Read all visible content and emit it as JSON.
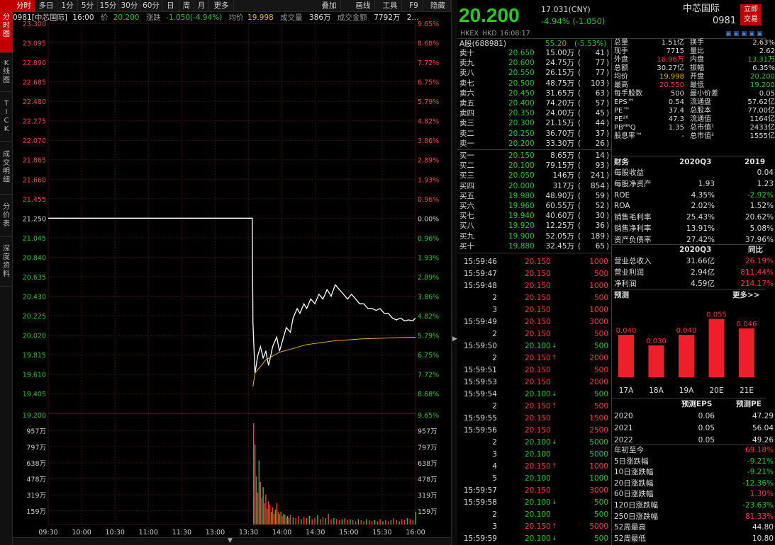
{
  "vtabs": [
    "分时图",
    "K线图",
    "TICK",
    "成交明细",
    "分价表",
    "深度资料"
  ],
  "toolbar": [
    "分时",
    "多日",
    "1分",
    "5分",
    "15分",
    "30分",
    "60分",
    "日",
    "周",
    "月",
    "更多",
    "叠加",
    "画线",
    "工具",
    "F9",
    "隐藏"
  ],
  "info": {
    "code": "0981[中芯国际]",
    "time": "16:00",
    "price_label": "价",
    "price": "20.200",
    "change_label": "涨跌",
    "change": "-1.050(-4.94%)",
    "avg_label": "均价",
    "avg": "19.998",
    "vol_label": "成交量",
    "vol": "386万",
    "amount_label": "成交金额",
    "amount": "7792万",
    "more": "2..."
  },
  "chart_data": {
    "type": "line",
    "prev_close": 21.25,
    "price_axis_left": [
      "23.300",
      "23.095",
      "22.890",
      "22.685",
      "22.480",
      "22.275",
      "22.070",
      "21.865",
      "21.660",
      "21.455",
      "21.250",
      "21.045",
      "20.840",
      "20.635",
      "20.430",
      "20.225",
      "20.020",
      "19.815",
      "19.610",
      "19.405"
    ],
    "price_axis_right": [
      "9.65%",
      "8.68%",
      "7.72%",
      "6.75%",
      "5.79%",
      "4.82%",
      "3.86%",
      "2.89%",
      "1.93%",
      "0.96%",
      "0.00%",
      "0.96%",
      "1.93%",
      "2.89%",
      "3.86%",
      "4.82%",
      "5.79%",
      "6.75%",
      "7.72%",
      "8.68%"
    ],
    "vol_axis_left": [
      "19.200",
      "957万",
      "797万",
      "638万",
      "478万",
      "319万",
      "159万"
    ],
    "vol_axis_right": [
      "9.65%",
      "957万",
      "797万",
      "638万",
      "478万",
      "319万",
      "159万"
    ],
    "x_labels": [
      "09:30",
      "10:00",
      "10:30",
      "11:00",
      "11:30",
      "13:00",
      "13:30",
      "14:00",
      "14:30",
      "15:00",
      "15:30",
      "16:00"
    ],
    "price_series": [
      [
        0,
        21.25
      ],
      [
        150,
        21.25
      ],
      [
        150.5,
        20.15
      ],
      [
        152,
        19.62
      ],
      [
        154,
        19.8
      ],
      [
        156,
        19.9
      ],
      [
        158,
        19.78
      ],
      [
        160,
        19.85
      ],
      [
        162,
        19.7
      ],
      [
        165,
        19.9
      ],
      [
        168,
        20.0
      ],
      [
        170,
        19.85
      ],
      [
        172,
        19.95
      ],
      [
        175,
        20.1
      ],
      [
        178,
        20.05
      ],
      [
        180,
        20.2
      ],
      [
        183,
        20.3
      ],
      [
        185,
        20.25
      ],
      [
        188,
        20.35
      ],
      [
        190,
        20.3
      ],
      [
        193,
        20.4
      ],
      [
        196,
        20.35
      ],
      [
        199,
        20.45
      ],
      [
        202,
        20.4
      ],
      [
        205,
        20.5
      ],
      [
        208,
        20.43
      ],
      [
        211,
        20.55
      ],
      [
        214,
        20.5
      ],
      [
        217,
        20.45
      ],
      [
        220,
        20.4
      ],
      [
        223,
        20.45
      ],
      [
        226,
        20.4
      ],
      [
        229,
        20.35
      ],
      [
        232,
        20.35
      ],
      [
        235,
        20.3
      ],
      [
        238,
        20.3
      ],
      [
        241,
        20.28
      ],
      [
        244,
        20.3
      ],
      [
        247,
        20.25
      ],
      [
        250,
        20.25
      ],
      [
        253,
        20.2
      ],
      [
        256,
        20.18
      ],
      [
        259,
        20.2
      ],
      [
        262,
        20.17
      ],
      [
        265,
        20.18
      ],
      [
        268,
        20.17
      ],
      [
        270,
        20.2
      ]
    ],
    "avg_series": [
      [
        150.5,
        19.48
      ],
      [
        152,
        19.62
      ],
      [
        160,
        19.76
      ],
      [
        170,
        19.84
      ],
      [
        180,
        19.88
      ],
      [
        190,
        19.92
      ],
      [
        200,
        19.94
      ],
      [
        210,
        19.96
      ],
      [
        220,
        19.97
      ],
      [
        230,
        19.98
      ],
      [
        240,
        19.985
      ],
      [
        250,
        19.99
      ],
      [
        260,
        19.995
      ],
      [
        270,
        19.998
      ]
    ],
    "volume_bars": [
      [
        151,
        0.95
      ],
      [
        152,
        0.75
      ],
      [
        153,
        0.45
      ],
      [
        154,
        0.3
      ],
      [
        155,
        0.6
      ],
      [
        156,
        0.4
      ],
      [
        157,
        0.25
      ],
      [
        158,
        0.35
      ],
      [
        159,
        0.2
      ],
      [
        160,
        0.28
      ],
      [
        161,
        0.15
      ],
      [
        162,
        0.22
      ],
      [
        163,
        0.18
      ],
      [
        164,
        0.12
      ],
      [
        165,
        0.16
      ],
      [
        166,
        0.1
      ],
      [
        167,
        0.14
      ],
      [
        168,
        0.2
      ],
      [
        169,
        0.12
      ],
      [
        170,
        0.1
      ],
      [
        171,
        0.12
      ],
      [
        172,
        0.08
      ],
      [
        173,
        0.1
      ],
      [
        174,
        0.09
      ],
      [
        175,
        0.07
      ],
      [
        176,
        0.08
      ],
      [
        177,
        0.06
      ],
      [
        178,
        0.09
      ],
      [
        180,
        0.07
      ],
      [
        182,
        0.06
      ],
      [
        184,
        0.08
      ],
      [
        186,
        0.05
      ],
      [
        188,
        0.07
      ],
      [
        190,
        0.06
      ],
      [
        192,
        0.08
      ],
      [
        194,
        0.05
      ],
      [
        196,
        0.06
      ],
      [
        198,
        0.09
      ],
      [
        200,
        0.05
      ],
      [
        202,
        0.07
      ],
      [
        204,
        0.06
      ],
      [
        206,
        0.1
      ],
      [
        208,
        0.05
      ],
      [
        210,
        0.06
      ],
      [
        212,
        0.05
      ],
      [
        214,
        0.04
      ],
      [
        216,
        0.05
      ],
      [
        218,
        0.06
      ],
      [
        220,
        0.04
      ],
      [
        222,
        0.05
      ],
      [
        224,
        0.04
      ],
      [
        226,
        0.03
      ],
      [
        228,
        0.05
      ],
      [
        230,
        0.04
      ],
      [
        232,
        0.03
      ],
      [
        234,
        0.05
      ],
      [
        236,
        0.04
      ],
      [
        238,
        0.03
      ],
      [
        240,
        0.04
      ],
      [
        242,
        0.03
      ],
      [
        244,
        0.05
      ],
      [
        246,
        0.03
      ],
      [
        248,
        0.04
      ],
      [
        250,
        0.03
      ],
      [
        252,
        0.04
      ],
      [
        254,
        0.06
      ],
      [
        256,
        0.04
      ],
      [
        258,
        0.03
      ],
      [
        260,
        0.05
      ],
      [
        262,
        0.04
      ],
      [
        264,
        0.06
      ],
      [
        266,
        0.05
      ],
      [
        268,
        0.04
      ],
      [
        270,
        0.12
      ]
    ]
  },
  "quote": {
    "price": "20.200",
    "cny": "17.031(CNY)",
    "change": "-4.94% (-1.050)",
    "exchange": "HKEX",
    "currency": "HKD",
    "time": "16:08:17",
    "name": "中芯国际",
    "code": "0981",
    "trade_btn": "立即交易"
  },
  "ashare": {
    "label": "A股(688981)",
    "price": "55.20",
    "pct": "(-5.53%)"
  },
  "asks": [
    [
      "卖十",
      "20.650",
      "15.00万",
      "41"
    ],
    [
      "卖九",
      "20.600",
      "24.75万",
      "77"
    ],
    [
      "卖八",
      "20.550",
      "26.15万",
      "77"
    ],
    [
      "卖七",
      "20.500",
      "48.75万",
      "103"
    ],
    [
      "卖六",
      "20.450",
      "31.65万",
      "63"
    ],
    [
      "卖五",
      "20.400",
      "74.20万",
      "57"
    ],
    [
      "卖四",
      "20.350",
      "24.00万",
      "45"
    ],
    [
      "卖三",
      "20.300",
      "21.15万",
      "44"
    ],
    [
      "卖二",
      "20.250",
      "36.70万",
      "37"
    ],
    [
      "卖一",
      "20.200",
      "33.30万",
      "26"
    ]
  ],
  "bids": [
    [
      "买一",
      "20.150",
      "8.65万",
      "14"
    ],
    [
      "买二",
      "20.100",
      "79.15万",
      "93"
    ],
    [
      "买三",
      "20.050",
      "146万",
      "241"
    ],
    [
      "买四",
      "20.000",
      "317万",
      "854"
    ],
    [
      "买五",
      "19.980",
      "48.90万",
      "59"
    ],
    [
      "买六",
      "19.960",
      "60.55万",
      "52"
    ],
    [
      "买七",
      "19.940",
      "40.60万",
      "30"
    ],
    [
      "买八",
      "19.920",
      "12.25万",
      "36"
    ],
    [
      "买九",
      "19.900",
      "52.05万",
      "189"
    ],
    [
      "买十",
      "19.880",
      "32.45万",
      "65"
    ]
  ],
  "ticks": [
    [
      "15:59:46",
      "20.150",
      "",
      "1000",
      "r"
    ],
    [
      "15:59:47",
      "20.150",
      "",
      "500",
      "r"
    ],
    [
      "15:59:48",
      "20.150",
      "",
      "1000",
      "r"
    ],
    [
      "2",
      "20.150",
      "",
      "500",
      "r"
    ],
    [
      "3",
      "20.150",
      "",
      "1000",
      "r"
    ],
    [
      "15:59:49",
      "20.150",
      "",
      "3000",
      "r"
    ],
    [
      "2",
      "20.150",
      "",
      "500",
      "r"
    ],
    [
      "15:59:50",
      "20.100",
      "down",
      "500",
      "g"
    ],
    [
      "2",
      "20.150",
      "up",
      "2000",
      "r"
    ],
    [
      "15:59:51",
      "20.150",
      "",
      "500",
      "r"
    ],
    [
      "15:59:53",
      "20.150",
      "",
      "2000",
      "r"
    ],
    [
      "15:59:54",
      "20.100",
      "down",
      "500",
      "g"
    ],
    [
      "2",
      "20.150",
      "up",
      "500",
      "r"
    ],
    [
      "15:59:55",
      "20.150",
      "",
      "1500",
      "r"
    ],
    [
      "15:59:56",
      "20.150",
      "",
      "2500",
      "r"
    ],
    [
      "2",
      "20.100",
      "down",
      "5000",
      "g"
    ],
    [
      "3",
      "20.100",
      "",
      "5000",
      "g"
    ],
    [
      "4",
      "20.150",
      "up",
      "1000",
      "r"
    ],
    [
      "5",
      "20.100",
      "",
      "1000",
      "g"
    ],
    [
      "15:59:57",
      "20.150",
      "",
      "3000",
      "r"
    ],
    [
      "15:59:58",
      "20.100",
      "down",
      "500",
      "g"
    ],
    [
      "2",
      "20.100",
      "",
      "500",
      "g"
    ],
    [
      "3",
      "20.150",
      "up",
      "5000",
      "r"
    ],
    [
      "15:59:59",
      "20.100",
      "down",
      "500",
      "g"
    ]
  ],
  "stats": [
    [
      "总量",
      "1.51亿",
      "换手",
      "2.63%"
    ],
    [
      "现手",
      "7715",
      "量比",
      "2.62"
    ],
    [
      "外盘",
      "16.96万",
      "内盘",
      "13.31万"
    ],
    [
      "总额",
      "30.27亿",
      "振幅",
      "6.35%"
    ],
    [
      "均价",
      "19.998",
      "开盘",
      "20.200"
    ],
    [
      "最高",
      "20.550",
      "最低",
      "19.200"
    ],
    [
      "每手股数",
      "500",
      "最小价差",
      "0.05"
    ],
    [
      "EPS™",
      "0.54",
      "流通盘",
      "57.62亿"
    ],
    [
      "PE™",
      "37.4",
      "总股本",
      "77.00亿"
    ],
    [
      "PE²⁰",
      "47.3",
      "流通值",
      "1164亿"
    ],
    [
      "PBᴹᴿQ",
      "1.35",
      "总市值¹",
      "2433亿"
    ],
    [
      "股息率™",
      "-",
      "总市值²",
      "1555亿"
    ]
  ],
  "fin_head": [
    "财务",
    "2020Q3",
    "2019"
  ],
  "fin": [
    [
      "每股收益",
      "",
      "0.04"
    ],
    [
      "每股净资产",
      "1.93",
      "1.23"
    ],
    [
      "ROE",
      "4.35%",
      "-2.92%"
    ],
    [
      "ROA",
      "2.02%",
      "1.52%"
    ],
    [
      "销售毛利率",
      "25.43%",
      "20.62%"
    ],
    [
      "销售净利率",
      "13.91%",
      "5.08%"
    ],
    [
      "资产负债率",
      "27.42%",
      "37.96%"
    ]
  ],
  "fin2_head": [
    "",
    "2020Q3",
    "同比"
  ],
  "fin2": [
    [
      "营业总收入",
      "31.66亿",
      "26.19%"
    ],
    [
      "营业利润",
      "2.94亿",
      "811.44%"
    ],
    [
      "净利润",
      "4.59亿",
      "214.17%"
    ]
  ],
  "forecast": {
    "title": "预测",
    "more": "更多>>",
    "bars": [
      [
        "17A",
        "0.040"
      ],
      [
        "18A",
        "0.030"
      ],
      [
        "19A",
        "0.040"
      ],
      [
        "20E",
        "0.055"
      ],
      [
        "21E",
        "0.046"
      ]
    ]
  },
  "fc_head": [
    "",
    "预测EPS",
    "预测PE"
  ],
  "fc": [
    [
      "2020",
      "0.06",
      "47.29"
    ],
    [
      "2021",
      "0.05",
      "56.04"
    ],
    [
      "2022",
      "0.05",
      "49.26"
    ]
  ],
  "perf": [
    [
      "年初至今",
      "69.18%",
      "r"
    ],
    [
      "5日涨跌幅",
      "-9.21%",
      "g"
    ],
    [
      "10日涨跌幅",
      "-9.21%",
      "g"
    ],
    [
      "20日涨跌幅",
      "-12.36%",
      "g"
    ],
    [
      "60日涨跌幅",
      "1.30%",
      "r"
    ],
    [
      "120日涨跌幅",
      "-23.63%",
      "g"
    ],
    [
      "250日涨跌幅",
      "81.33%",
      "r"
    ],
    [
      "52周最高",
      "44.80",
      "w"
    ],
    [
      "52周最低",
      "10.80",
      "w"
    ]
  ]
}
